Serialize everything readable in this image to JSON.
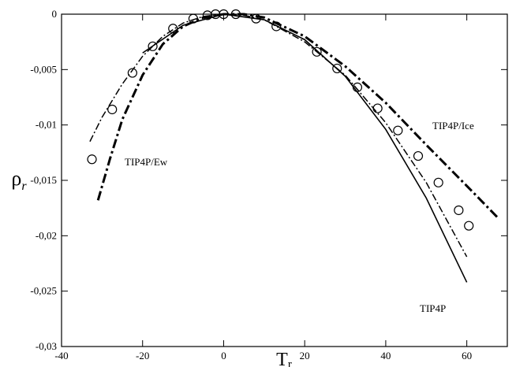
{
  "chart_data": {
    "type": "line",
    "xlabel": {
      "text": "T",
      "subscript": "r"
    },
    "ylabel": {
      "text": "ρ",
      "subscript": "r"
    },
    "xlim": [
      -40,
      70
    ],
    "xticks": [
      -40,
      -20,
      0,
      20,
      40,
      60
    ],
    "ylim": [
      -0.03,
      0
    ],
    "yticks": [
      {
        "value": -0.03,
        "label": "-0,03"
      },
      {
        "value": -0.025,
        "label": "-0,025"
      },
      {
        "value": -0.02,
        "label": "-0,02"
      },
      {
        "value": -0.015,
        "label": "-0,015"
      },
      {
        "value": -0.01,
        "label": "-0,01"
      },
      {
        "value": -0.005,
        "label": "-0,005"
      },
      0
    ],
    "series": [
      {
        "name": "TIP4P",
        "style": "solid",
        "color": "#000000",
        "x": [
          -20,
          -10,
          0,
          10,
          20,
          30,
          40,
          50,
          60
        ],
        "values": [
          -0.0035,
          -0.001,
          0,
          -0.0005,
          -0.0023,
          -0.0056,
          -0.0104,
          -0.0166,
          -0.0242
        ]
      },
      {
        "name": "TIP4P/Ew",
        "style": "dashdot",
        "color": "#000000",
        "x": [
          -33,
          -30,
          -25,
          -20,
          -15,
          -10,
          -5,
          0,
          5,
          10,
          20,
          30,
          40,
          50,
          60
        ],
        "values": [
          -0.0115,
          -0.0093,
          -0.0063,
          -0.0038,
          -0.002,
          -0.0008,
          -0.0002,
          0,
          -0.0001,
          -0.0005,
          -0.0025,
          -0.0055,
          -0.0098,
          -0.0152,
          -0.0219
        ]
      },
      {
        "name": "TIP4P/Ice",
        "style": "dashdot-thick",
        "color": "#000000",
        "x": [
          -31,
          -28,
          -25,
          -20,
          -15,
          -10,
          -5,
          0,
          5,
          10,
          20,
          30,
          40,
          50,
          60,
          68
        ],
        "values": [
          -0.0168,
          -0.013,
          -0.0095,
          -0.0055,
          -0.0027,
          -0.0011,
          -0.0003,
          0,
          0,
          -0.0003,
          -0.002,
          -0.0047,
          -0.008,
          -0.0118,
          -0.0155,
          -0.0185
        ]
      },
      {
        "style": "markers",
        "color": "#000000",
        "x": [
          -32.5,
          -27.5,
          -22.5,
          -17.5,
          -12.5,
          -7.5,
          -4,
          -2,
          0,
          3,
          8,
          13,
          23,
          28,
          33,
          38,
          43,
          48,
          53,
          58,
          60.5
        ],
        "values": [
          -0.0131,
          -0.0086,
          -0.0053,
          -0.0029,
          -0.0013,
          -0.0004,
          -0.0001,
          0,
          0,
          0,
          -0.0004,
          -0.0011,
          -0.0034,
          -0.0049,
          -0.0066,
          -0.0085,
          -0.0105,
          -0.0128,
          -0.0152,
          -0.0177,
          -0.0191
        ]
      }
    ]
  }
}
